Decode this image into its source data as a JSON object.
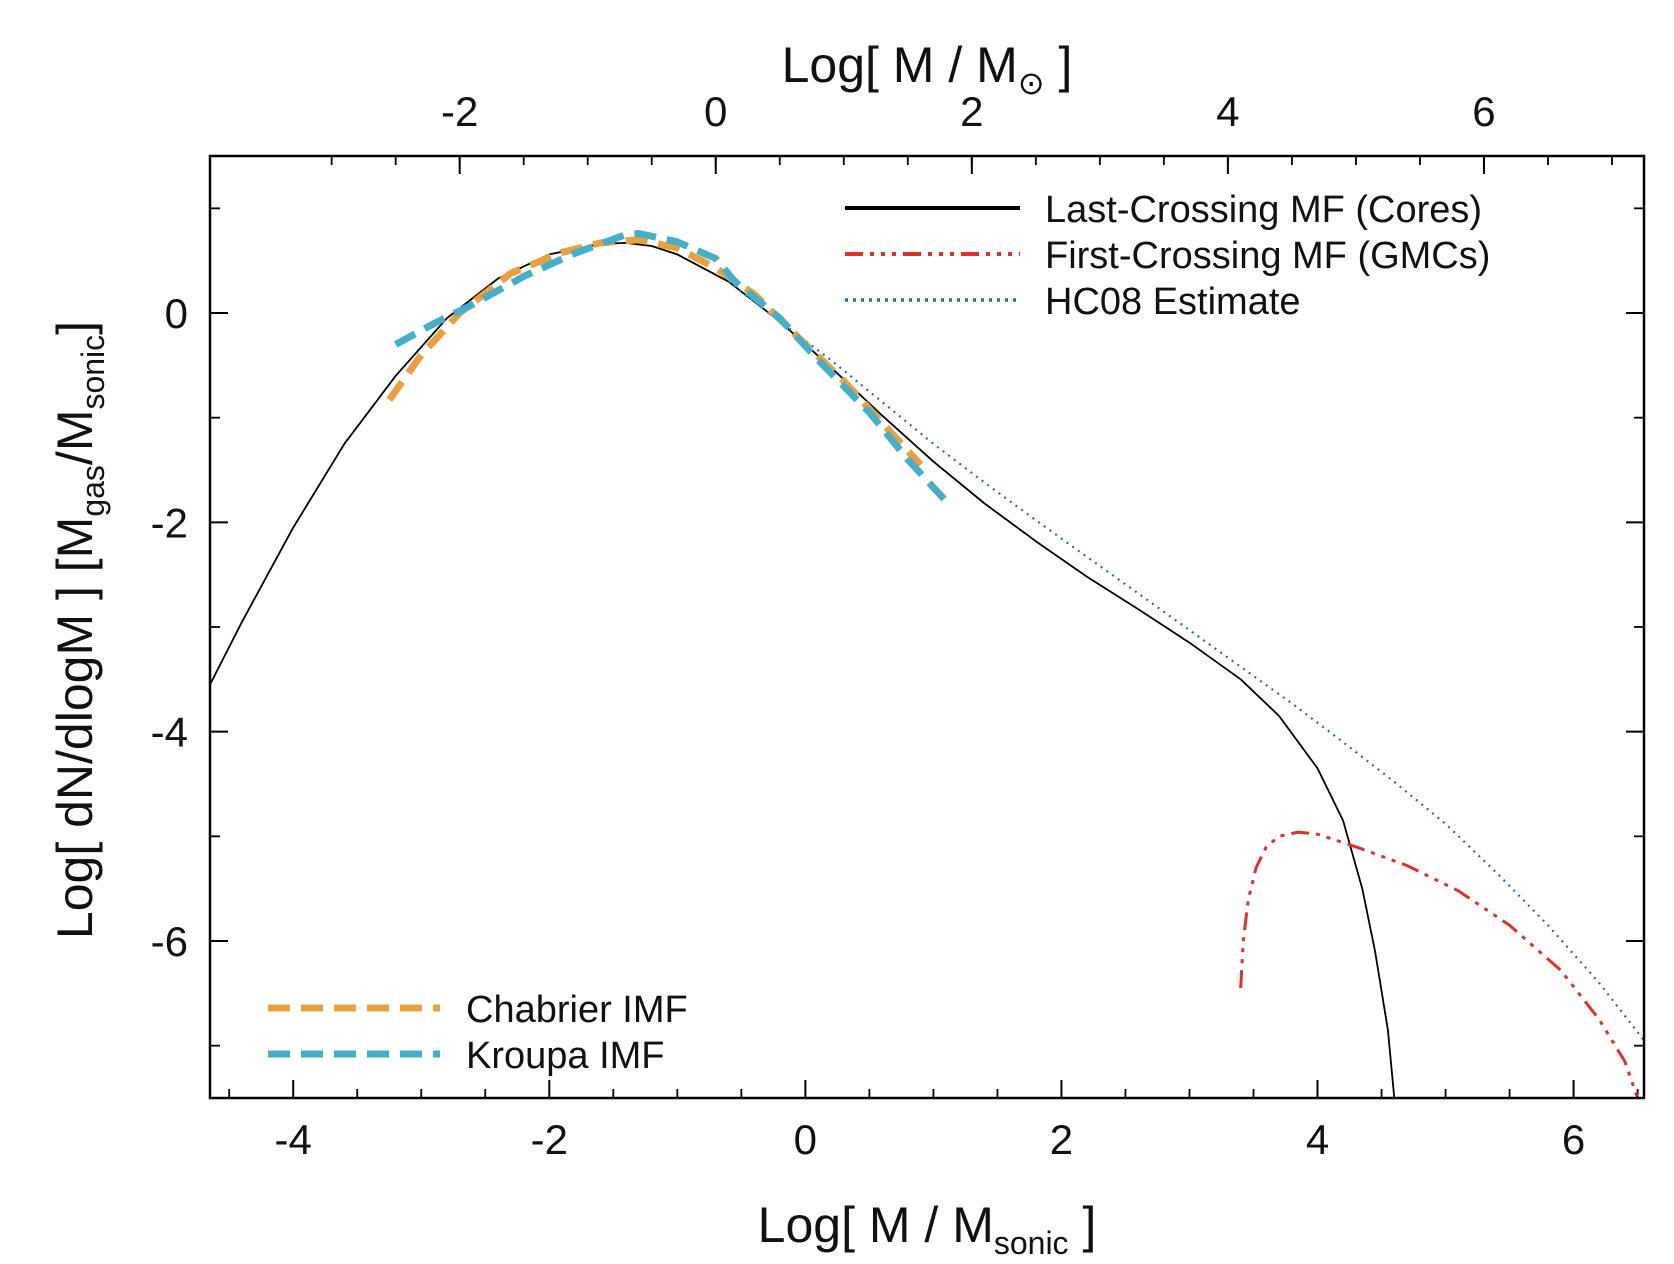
{
  "chart_data": {
    "type": "line",
    "xlabel": {
      "pre": "Log[ M / M",
      "sub": "sonic",
      "post": " ]"
    },
    "x2label": {
      "pre": "Log[ M / M",
      "sub": "⊙",
      "post": " ]"
    },
    "ylabel": {
      "pre": "Log[ dN/dlogM ]  [M",
      "sub1": "gas",
      "mid": "/M",
      "sub2": "sonic",
      "post": "]"
    },
    "xlim": [
      -4.65,
      6.55
    ],
    "ylim": [
      -7.5,
      1.5
    ],
    "x_ticks": [
      {
        "v": -4,
        "label": "-4"
      },
      {
        "v": -2,
        "label": "-2"
      },
      {
        "v": 0,
        "label": "0"
      },
      {
        "v": 2,
        "label": "2"
      },
      {
        "v": 4,
        "label": "4"
      },
      {
        "v": 6,
        "label": "6"
      }
    ],
    "x2_ticks": [
      {
        "v": -2.7,
        "label": "-2"
      },
      {
        "v": -0.7,
        "label": "0"
      },
      {
        "v": 1.3,
        "label": "2"
      },
      {
        "v": 3.3,
        "label": "4"
      },
      {
        "v": 5.3,
        "label": "6"
      }
    ],
    "y_ticks": [
      {
        "v": 0,
        "label": "0"
      },
      {
        "v": -2,
        "label": "-2"
      },
      {
        "v": -4,
        "label": "-4"
      },
      {
        "v": -6,
        "label": "-6"
      }
    ],
    "series": [
      {
        "name": "Last-Crossing MF (Cores)",
        "color": "#000000",
        "style": "solid",
        "width": 1.8,
        "points": [
          [
            -4.65,
            -3.55
          ],
          [
            -4.4,
            -2.95
          ],
          [
            -4.0,
            -2.05
          ],
          [
            -3.6,
            -1.25
          ],
          [
            -3.2,
            -0.6
          ],
          [
            -2.8,
            -0.05
          ],
          [
            -2.4,
            0.33
          ],
          [
            -2.0,
            0.56
          ],
          [
            -1.6,
            0.66
          ],
          [
            -1.4,
            0.67
          ],
          [
            -1.2,
            0.64
          ],
          [
            -1.0,
            0.56
          ],
          [
            -0.6,
            0.3
          ],
          [
            -0.2,
            -0.08
          ],
          [
            0.2,
            -0.52
          ],
          [
            0.6,
            -0.98
          ],
          [
            1.0,
            -1.42
          ],
          [
            1.4,
            -1.82
          ],
          [
            1.8,
            -2.18
          ],
          [
            2.2,
            -2.52
          ],
          [
            2.6,
            -2.83
          ],
          [
            3.0,
            -3.15
          ],
          [
            3.4,
            -3.5
          ],
          [
            3.7,
            -3.85
          ],
          [
            4.0,
            -4.35
          ],
          [
            4.2,
            -4.85
          ],
          [
            4.35,
            -5.5
          ],
          [
            4.45,
            -6.1
          ],
          [
            4.55,
            -6.85
          ],
          [
            4.6,
            -7.5
          ]
        ]
      },
      {
        "name": "First-Crossing MF (GMCs)",
        "color": "#e0302a",
        "style": "dashdot3",
        "width": 3,
        "points": [
          [
            3.4,
            -6.45
          ],
          [
            3.42,
            -6.0
          ],
          [
            3.46,
            -5.6
          ],
          [
            3.52,
            -5.3
          ],
          [
            3.6,
            -5.1
          ],
          [
            3.7,
            -5.0
          ],
          [
            3.85,
            -4.96
          ],
          [
            4.0,
            -4.98
          ],
          [
            4.3,
            -5.1
          ],
          [
            4.7,
            -5.28
          ],
          [
            5.1,
            -5.52
          ],
          [
            5.5,
            -5.85
          ],
          [
            5.9,
            -6.28
          ],
          [
            6.2,
            -6.75
          ],
          [
            6.4,
            -7.15
          ],
          [
            6.5,
            -7.5
          ]
        ]
      },
      {
        "name": "HC08 Estimate",
        "color": "#2a6aaa",
        "style": "dotted",
        "width": 2.2,
        "points": [
          [
            -0.6,
            0.3
          ],
          [
            -0.2,
            -0.08
          ],
          [
            0.2,
            -0.45
          ],
          [
            0.6,
            -0.85
          ],
          [
            1.0,
            -1.25
          ],
          [
            1.4,
            -1.62
          ],
          [
            1.8,
            -1.98
          ],
          [
            2.2,
            -2.33
          ],
          [
            2.6,
            -2.68
          ],
          [
            3.0,
            -3.03
          ],
          [
            3.4,
            -3.38
          ],
          [
            3.8,
            -3.73
          ],
          [
            4.2,
            -4.1
          ],
          [
            4.6,
            -4.48
          ],
          [
            5.0,
            -4.88
          ],
          [
            5.4,
            -5.35
          ],
          [
            5.8,
            -5.85
          ],
          [
            6.2,
            -6.4
          ],
          [
            6.55,
            -6.95
          ]
        ]
      },
      {
        "name": "Chabrier IMF",
        "color": "#e8a040",
        "style": "dashed",
        "width": 7,
        "points": [
          [
            -3.25,
            -0.83
          ],
          [
            -3.0,
            -0.4
          ],
          [
            -2.7,
            0.0
          ],
          [
            -2.3,
            0.38
          ],
          [
            -1.9,
            0.58
          ],
          [
            -1.6,
            0.67
          ],
          [
            -1.3,
            0.7
          ],
          [
            -1.0,
            0.62
          ],
          [
            -0.7,
            0.43
          ],
          [
            -0.4,
            0.18
          ],
          [
            0.0,
            -0.3
          ],
          [
            0.3,
            -0.65
          ],
          [
            0.6,
            -1.05
          ],
          [
            0.9,
            -1.45
          ]
        ]
      },
      {
        "name": "Kroupa IMF",
        "color": "#45aec8",
        "style": "dashed",
        "width": 7,
        "points": [
          [
            -3.2,
            -0.3
          ],
          [
            -2.9,
            -0.1
          ],
          [
            -2.6,
            0.08
          ],
          [
            -2.2,
            0.35
          ],
          [
            -1.8,
            0.57
          ],
          [
            -1.4,
            0.75
          ],
          [
            -1.3,
            0.76
          ],
          [
            -1.0,
            0.68
          ],
          [
            -0.7,
            0.52
          ],
          [
            -0.55,
            0.3
          ],
          [
            -0.2,
            -0.05
          ],
          [
            0.1,
            -0.45
          ],
          [
            0.5,
            -0.95
          ],
          [
            0.8,
            -1.4
          ],
          [
            1.1,
            -1.8
          ]
        ]
      }
    ],
    "legend_top": [
      "Last-Crossing MF (Cores)",
      "First-Crossing MF (GMCs)",
      "HC08 Estimate"
    ],
    "legend_bottom": [
      "Chabrier IMF",
      "Kroupa IMF"
    ]
  }
}
